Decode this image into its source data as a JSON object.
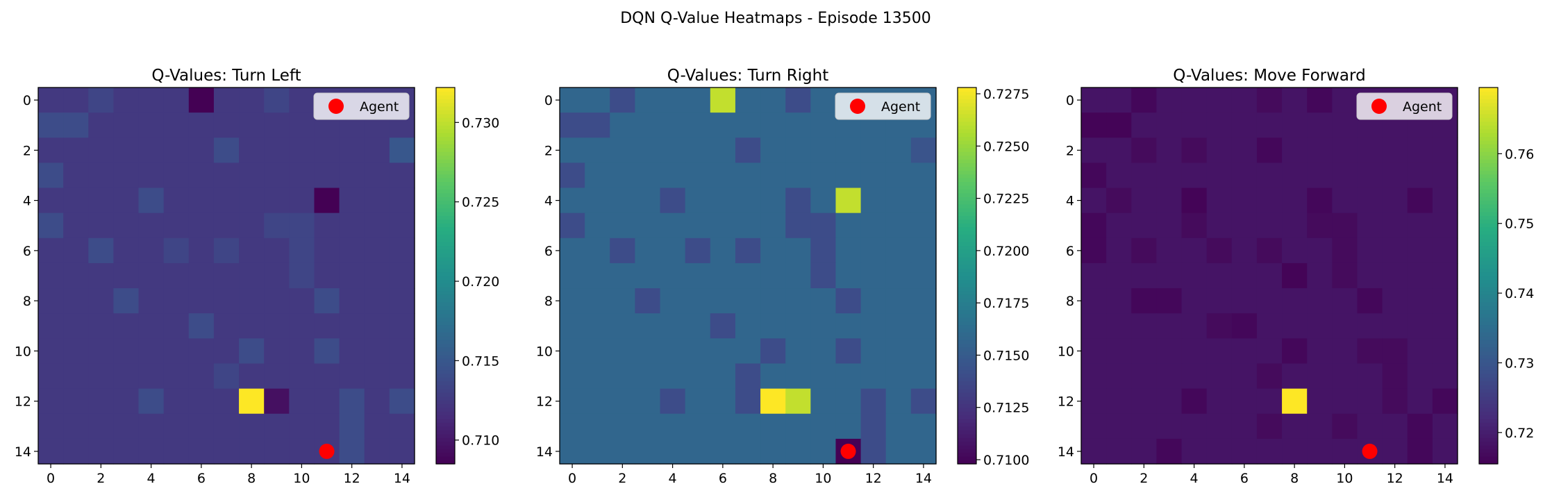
{
  "figure": {
    "title": "DQN Q-Value Heatmaps - Episode 13500"
  },
  "colors": {
    "agent": "#ff0000",
    "axis": "#000000"
  },
  "chart_data": [
    {
      "type": "heatmap",
      "title": "Q-Values: Turn Left",
      "xlim": [
        -0.5,
        14.5
      ],
      "ylim": [
        -0.5,
        14.5
      ],
      "x_ticks": [
        "0",
        "2",
        "4",
        "6",
        "8",
        "10",
        "12",
        "14"
      ],
      "y_ticks": [
        "0",
        "2",
        "4",
        "6",
        "8",
        "10",
        "12",
        "14"
      ],
      "colorbar": {
        "min": 0.7085,
        "max": 0.7322,
        "ticks": [
          "0.710",
          "0.715",
          "0.720",
          "0.725",
          "0.730"
        ],
        "tick_values": [
          0.71,
          0.715,
          0.72,
          0.725,
          0.73
        ]
      },
      "legend": {
        "label": "Agent",
        "position": "upper-right"
      },
      "agent": [
        11,
        14
      ],
      "base": 0.7125,
      "exceptions": [
        [
          0,
          2,
          0.7135
        ],
        [
          0,
          6,
          0.7085
        ],
        [
          0,
          9,
          0.7135
        ],
        [
          1,
          0,
          0.714
        ],
        [
          1,
          1,
          0.714
        ],
        [
          2,
          7,
          0.714
        ],
        [
          2,
          14,
          0.715
        ],
        [
          3,
          0,
          0.714
        ],
        [
          4,
          4,
          0.714
        ],
        [
          4,
          11,
          0.7085
        ],
        [
          5,
          0,
          0.714
        ],
        [
          5,
          9,
          0.7135
        ],
        [
          5,
          10,
          0.7135
        ],
        [
          6,
          2,
          0.714
        ],
        [
          6,
          5,
          0.7135
        ],
        [
          6,
          7,
          0.7135
        ],
        [
          6,
          10,
          0.7135
        ],
        [
          7,
          10,
          0.7135
        ],
        [
          8,
          3,
          0.714
        ],
        [
          8,
          11,
          0.714
        ],
        [
          9,
          6,
          0.714
        ],
        [
          10,
          8,
          0.714
        ],
        [
          10,
          11,
          0.714
        ],
        [
          11,
          7,
          0.7135
        ],
        [
          12,
          4,
          0.714
        ],
        [
          12,
          8,
          0.7322
        ],
        [
          12,
          9,
          0.7095
        ],
        [
          12,
          12,
          0.714
        ],
        [
          12,
          14,
          0.714
        ],
        [
          13,
          12,
          0.714
        ],
        [
          14,
          12,
          0.714
        ]
      ]
    },
    {
      "type": "heatmap",
      "title": "Q-Values: Turn Right",
      "xlim": [
        -0.5,
        14.5
      ],
      "ylim": [
        -0.5,
        14.5
      ],
      "x_ticks": [
        "0",
        "2",
        "4",
        "6",
        "8",
        "10",
        "12",
        "14"
      ],
      "y_ticks": [
        "0",
        "2",
        "4",
        "6",
        "8",
        "10",
        "12",
        "14"
      ],
      "colorbar": {
        "min": 0.7098,
        "max": 0.7278,
        "ticks": [
          "0.7100",
          "0.7125",
          "0.7150",
          "0.7175",
          "0.7200",
          "0.7225",
          "0.7250",
          "0.7275"
        ],
        "tick_values": [
          0.71,
          0.7125,
          0.715,
          0.7175,
          0.72,
          0.7225,
          0.725,
          0.7275
        ]
      },
      "legend": {
        "label": "Agent",
        "position": "upper-right"
      },
      "agent": [
        11,
        14
      ],
      "base": 0.7158,
      "exceptions": [
        [
          0,
          2,
          0.714
        ],
        [
          0,
          6,
          0.7262
        ],
        [
          0,
          9,
          0.714
        ],
        [
          1,
          0,
          0.714
        ],
        [
          1,
          1,
          0.714
        ],
        [
          2,
          7,
          0.714
        ],
        [
          2,
          14,
          0.7145
        ],
        [
          3,
          0,
          0.714
        ],
        [
          4,
          4,
          0.714
        ],
        [
          4,
          9,
          0.714
        ],
        [
          4,
          11,
          0.7262
        ],
        [
          5,
          0,
          0.714
        ],
        [
          5,
          9,
          0.714
        ],
        [
          5,
          10,
          0.714
        ],
        [
          6,
          2,
          0.714
        ],
        [
          6,
          5,
          0.714
        ],
        [
          6,
          7,
          0.714
        ],
        [
          6,
          10,
          0.714
        ],
        [
          7,
          10,
          0.714
        ],
        [
          8,
          3,
          0.714
        ],
        [
          8,
          11,
          0.714
        ],
        [
          9,
          6,
          0.714
        ],
        [
          10,
          8,
          0.714
        ],
        [
          10,
          11,
          0.714
        ],
        [
          11,
          7,
          0.714
        ],
        [
          12,
          4,
          0.714
        ],
        [
          12,
          7,
          0.714
        ],
        [
          12,
          8,
          0.7278
        ],
        [
          12,
          9,
          0.7262
        ],
        [
          12,
          12,
          0.714
        ],
        [
          12,
          14,
          0.714
        ],
        [
          13,
          12,
          0.714
        ],
        [
          14,
          11,
          0.7098
        ],
        [
          14,
          12,
          0.714
        ]
      ]
    },
    {
      "type": "heatmap",
      "title": "Q-Values: Move Forward",
      "xlim": [
        -0.5,
        14.5
      ],
      "ylim": [
        -0.5,
        14.5
      ],
      "x_ticks": [
        "0",
        "2",
        "4",
        "6",
        "8",
        "10",
        "12",
        "14"
      ],
      "y_ticks": [
        "0",
        "2",
        "4",
        "6",
        "8",
        "10",
        "12",
        "14"
      ],
      "colorbar": {
        "min": 0.7155,
        "max": 0.7695,
        "ticks": [
          "0.72",
          "0.73",
          "0.74",
          "0.75",
          "0.76"
        ],
        "tick_values": [
          0.72,
          0.73,
          0.74,
          0.75,
          0.76
        ]
      },
      "legend": {
        "label": "Agent",
        "position": "upper-right"
      },
      "agent": [
        11,
        14
      ],
      "base": 0.7185,
      "exceptions": [
        [
          0,
          2,
          0.7165
        ],
        [
          0,
          7,
          0.717
        ],
        [
          0,
          9,
          0.7165
        ],
        [
          1,
          0,
          0.716
        ],
        [
          1,
          1,
          0.716
        ],
        [
          2,
          2,
          0.717
        ],
        [
          2,
          4,
          0.717
        ],
        [
          2,
          7,
          0.7165
        ],
        [
          3,
          0,
          0.7165
        ],
        [
          4,
          1,
          0.717
        ],
        [
          4,
          4,
          0.716
        ],
        [
          4,
          9,
          0.7165
        ],
        [
          4,
          13,
          0.7165
        ],
        [
          5,
          0,
          0.7165
        ],
        [
          5,
          4,
          0.717
        ],
        [
          5,
          9,
          0.717
        ],
        [
          5,
          10,
          0.717
        ],
        [
          6,
          0,
          0.7165
        ],
        [
          6,
          2,
          0.717
        ],
        [
          6,
          5,
          0.717
        ],
        [
          6,
          7,
          0.717
        ],
        [
          6,
          10,
          0.717
        ],
        [
          7,
          8,
          0.716
        ],
        [
          7,
          10,
          0.717
        ],
        [
          8,
          2,
          0.7165
        ],
        [
          8,
          3,
          0.7165
        ],
        [
          8,
          11,
          0.7165
        ],
        [
          9,
          5,
          0.717
        ],
        [
          9,
          6,
          0.7165
        ],
        [
          10,
          8,
          0.7165
        ],
        [
          10,
          11,
          0.717
        ],
        [
          10,
          12,
          0.717
        ],
        [
          11,
          7,
          0.717
        ],
        [
          11,
          12,
          0.717
        ],
        [
          12,
          4,
          0.7165
        ],
        [
          12,
          8,
          0.7695
        ],
        [
          12,
          12,
          0.717
        ],
        [
          12,
          14,
          0.7165
        ],
        [
          13,
          7,
          0.717
        ],
        [
          13,
          10,
          0.717
        ],
        [
          13,
          13,
          0.7165
        ],
        [
          14,
          3,
          0.7165
        ],
        [
          14,
          13,
          0.7165
        ]
      ]
    }
  ]
}
